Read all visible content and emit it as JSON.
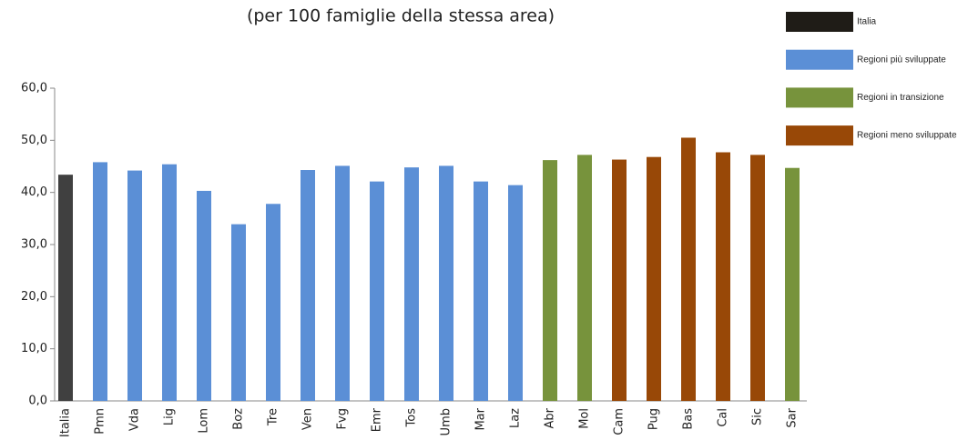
{
  "chart_data": {
    "type": "bar",
    "title": "(per 100 famiglie della stessa area)",
    "categories": [
      "Italia",
      "Pmn",
      "Vda",
      "Lig",
      "Lom",
      "Boz",
      "Tre",
      "Ven",
      "Fvg",
      "Emr",
      "Tos",
      "Umb",
      "Mar",
      "Laz",
      "Abr",
      "Mol",
      "Cam",
      "Pug",
      "Bas",
      "Cal",
      "Sic",
      "Sar"
    ],
    "values": [
      43.4,
      45.8,
      44.2,
      45.4,
      40.3,
      33.9,
      37.8,
      44.3,
      45.1,
      42.1,
      44.8,
      45.1,
      42.1,
      41.4,
      46.2,
      47.2,
      46.3,
      46.8,
      50.5,
      47.7,
      47.2,
      44.7
    ],
    "colors": [
      "#404040",
      "#5b8fd6",
      "#5b8fd6",
      "#5b8fd6",
      "#5b8fd6",
      "#5b8fd6",
      "#5b8fd6",
      "#5b8fd6",
      "#5b8fd6",
      "#5b8fd6",
      "#5b8fd6",
      "#5b8fd6",
      "#5b8fd6",
      "#5b8fd6",
      "#77933c",
      "#77933c",
      "#984807",
      "#984807",
      "#984807",
      "#984807",
      "#984807",
      "#77933c"
    ],
    "legend": [
      {
        "name": "Italia",
        "color": "#1f1c17"
      },
      {
        "name": "Regioni più sviluppate",
        "color": "#5b8fd6"
      },
      {
        "name": "Regioni in transizione",
        "color": "#77933c"
      },
      {
        "name": "Regioni meno sviluppate",
        "color": "#984807"
      }
    ],
    "ylim": [
      0,
      60
    ],
    "yticks": [
      {
        "value": 0,
        "label": "0,0"
      },
      {
        "value": 10,
        "label": "10,0"
      },
      {
        "value": 20,
        "label": "20,0"
      },
      {
        "value": 30,
        "label": "30,0"
      },
      {
        "value": 40,
        "label": "40,0"
      },
      {
        "value": 50,
        "label": "50,0"
      },
      {
        "value": 60,
        "label": "60,0"
      }
    ]
  }
}
